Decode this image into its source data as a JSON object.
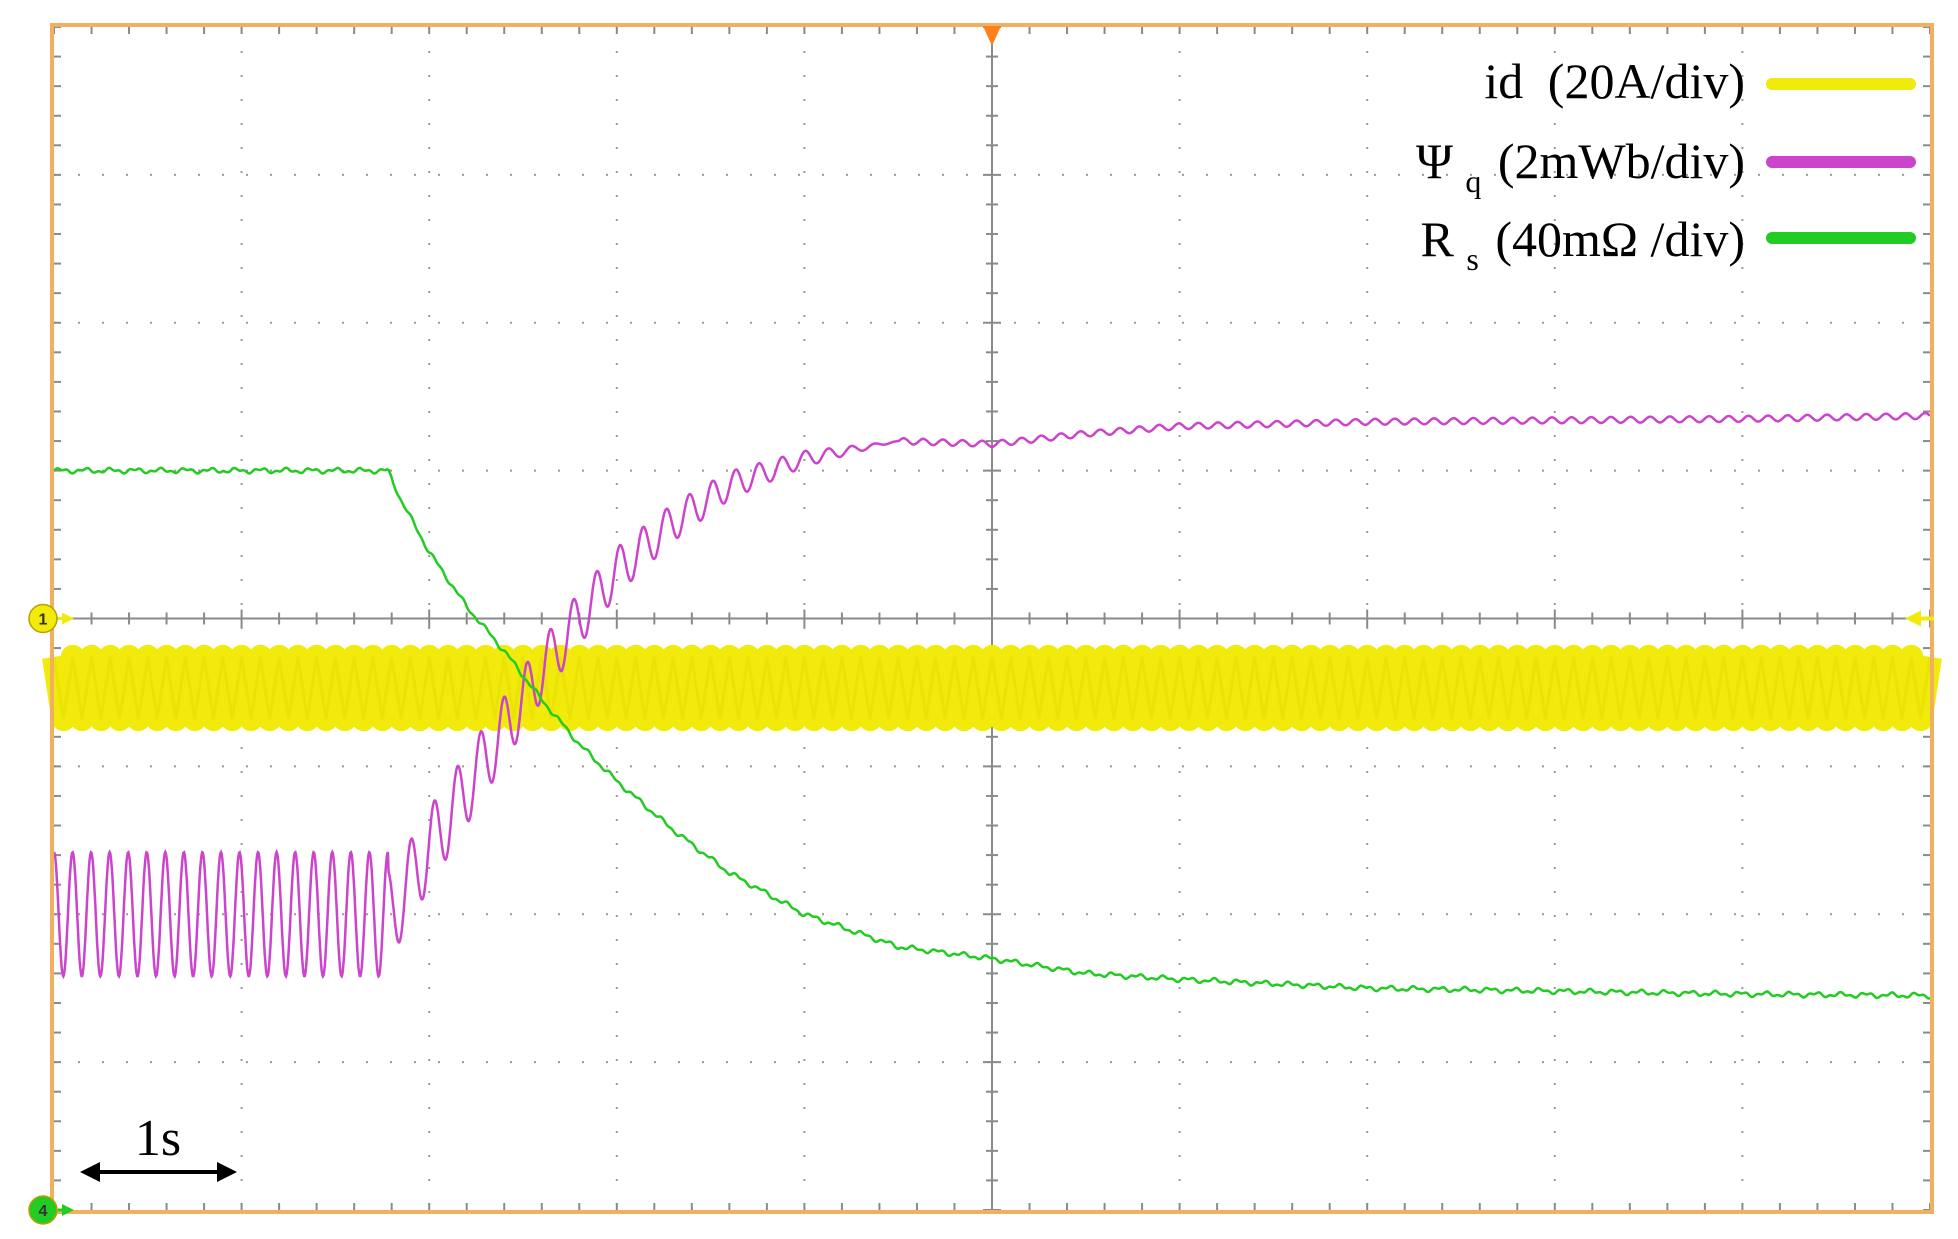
{
  "chart_data": {
    "type": "line",
    "title": "",
    "xlabel": "",
    "ylabel": "",
    "grid": true,
    "divisions": {
      "x": 10,
      "y": 8
    },
    "time_scale_label": "1s",
    "time_scale_s_per_div": 1,
    "xlim_div": [
      0,
      10
    ],
    "ylim_div": [
      -4,
      4
    ],
    "legend_position": "top-right",
    "trigger_position_div": 5,
    "series": [
      {
        "name": "id",
        "unit_label": "(20A/div)",
        "sub": "",
        "color": "#f2ea0a",
        "style": "thick-ripple",
        "channel_marker": "1",
        "marker_color": "#f2ea0a",
        "offset_div": 0,
        "mean_div": -0.47,
        "ripple_amplitude_div": 0.21,
        "ripple_cycles_total": 100
      },
      {
        "name": "Ψ",
        "sub": "q",
        "unit_label": "(2mWb/div)",
        "color": "#cc44cc",
        "style": "thin",
        "points": [
          [
            0,
            -2.0
          ],
          [
            1.0,
            -2.0
          ],
          [
            1.5,
            -2.0
          ],
          [
            1.8,
            -2.0
          ],
          [
            2.0,
            -1.55
          ],
          [
            2.2,
            -1.15
          ],
          [
            2.4,
            -0.75
          ],
          [
            2.6,
            -0.35
          ],
          [
            2.8,
            0.0
          ],
          [
            3.0,
            0.32
          ],
          [
            3.3,
            0.65
          ],
          [
            3.6,
            0.9
          ],
          [
            4.0,
            1.08
          ],
          [
            4.5,
            1.2
          ],
          [
            5.0,
            1.18
          ],
          [
            5.5,
            1.25
          ],
          [
            6.0,
            1.3
          ],
          [
            7.0,
            1.33
          ],
          [
            8.0,
            1.34
          ],
          [
            9.0,
            1.35
          ],
          [
            10.0,
            1.37
          ]
        ],
        "oscillation": {
          "from_div": 0,
          "to_div": 1.78,
          "amplitude_div": 0.42,
          "cycles": 18,
          "decay_from_div": 1.78,
          "decay_to_div": 4.5,
          "decay_amplitude_div": 0.32,
          "decay_cycles": 22
        }
      },
      {
        "name": "R",
        "sub": "s",
        "unit_label": "(40mΩ /div)",
        "color": "#22cc22",
        "style": "thin",
        "channel_marker": "4",
        "marker_color": "#22cc22",
        "offset_div": -4,
        "points": [
          [
            0,
            1.0
          ],
          [
            1.78,
            1.0
          ],
          [
            1.85,
            0.8
          ],
          [
            2.0,
            0.45
          ],
          [
            2.2,
            0.08
          ],
          [
            2.4,
            -0.22
          ],
          [
            2.6,
            -0.55
          ],
          [
            2.8,
            -0.85
          ],
          [
            3.0,
            -1.1
          ],
          [
            3.3,
            -1.43
          ],
          [
            3.6,
            -1.72
          ],
          [
            4.0,
            -2.0
          ],
          [
            4.5,
            -2.22
          ],
          [
            5.0,
            -2.3
          ],
          [
            5.5,
            -2.4
          ],
          [
            6.0,
            -2.44
          ],
          [
            7.0,
            -2.5
          ],
          [
            8.0,
            -2.52
          ],
          [
            9.0,
            -2.54
          ],
          [
            10.0,
            -2.55
          ]
        ]
      }
    ]
  }
}
